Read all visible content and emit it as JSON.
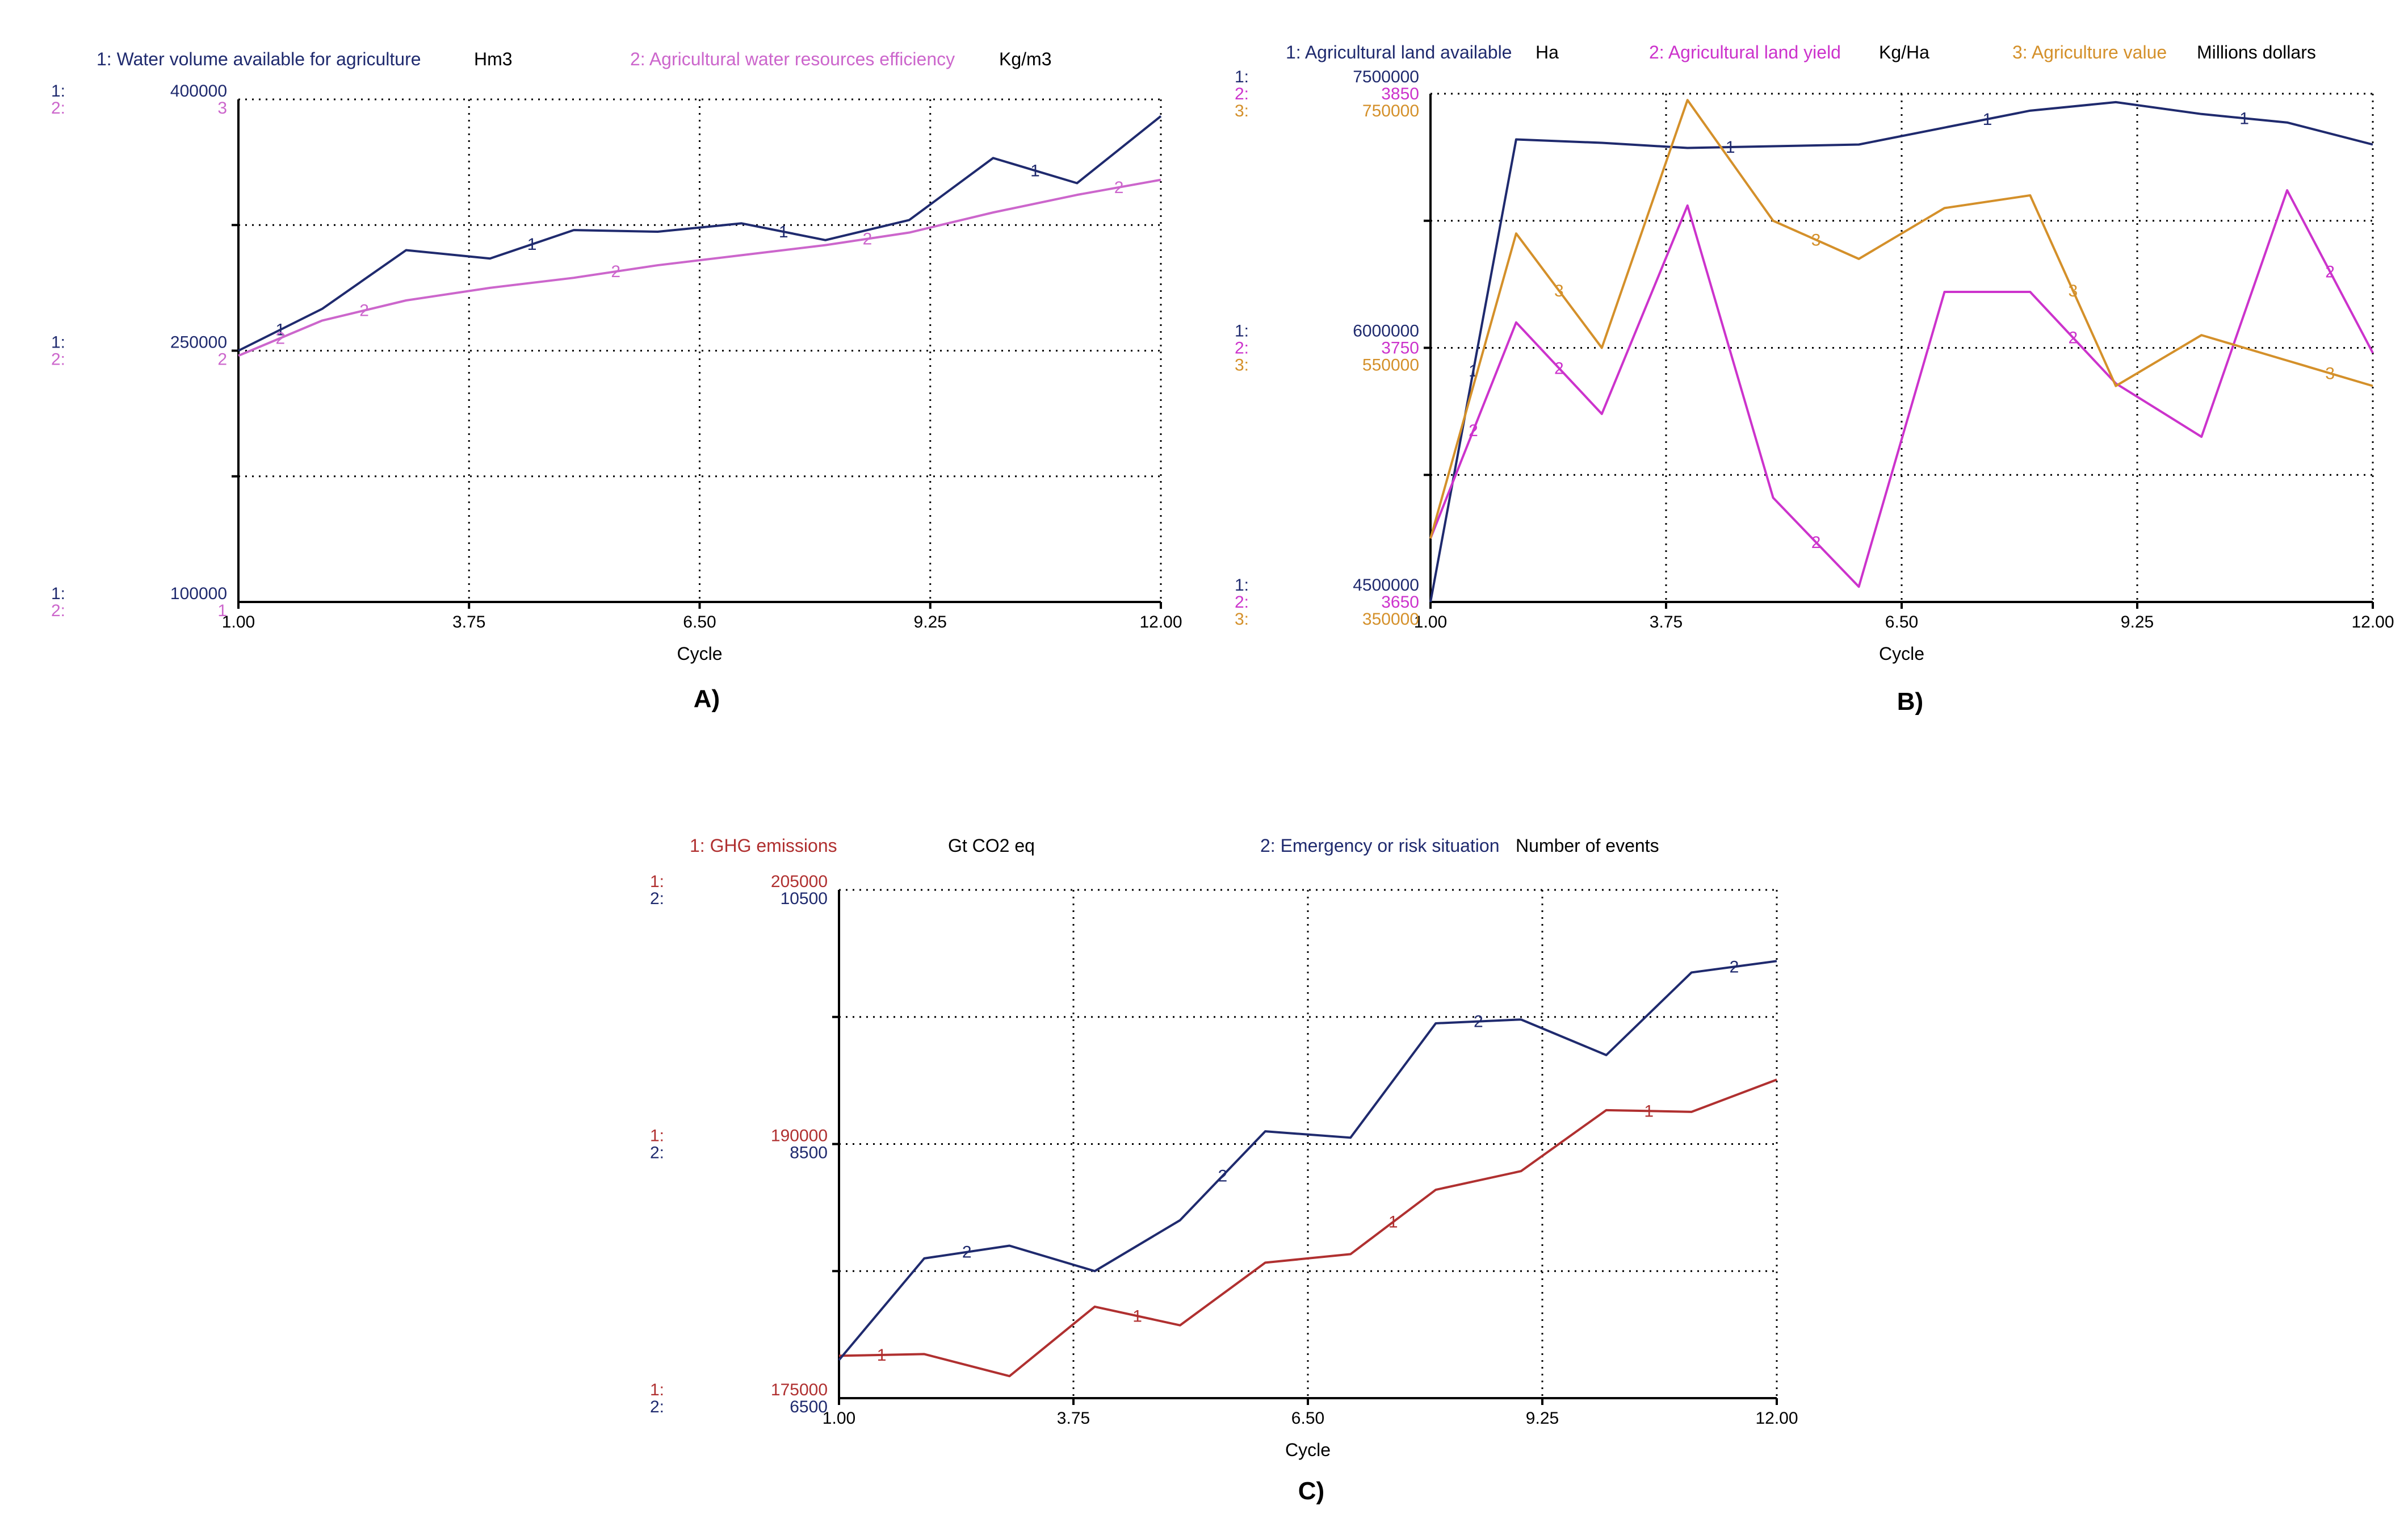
{
  "chart_data": [
    {
      "type": "line",
      "panel_label": "A)",
      "xlabel": "Cycle",
      "x_ticks": [
        "1.00",
        "3.75",
        "6.50",
        "9.25",
        "12.00"
      ],
      "xlim": [
        1,
        12
      ],
      "x": [
        1,
        2,
        3,
        4,
        5,
        6,
        7,
        8,
        9,
        10,
        11,
        12
      ],
      "series": [
        {
          "id": "1",
          "name": "1: Water volume available for agriculture",
          "unit": "Hm3",
          "color": "#1f2a6e",
          "ylim": [
            100000,
            400000
          ],
          "axis_ticks": [
            "400000",
            "250000",
            "100000"
          ],
          "label_every": [
            0,
            3,
            6,
            9
          ],
          "values": [
            250000,
            275000,
            310000,
            305000,
            322000,
            321000,
            326000,
            316000,
            328000,
            365000,
            350000,
            390000
          ]
        },
        {
          "id": "2",
          "name": "2: Agricultural water resources efficiency",
          "unit": "Kg/m3",
          "color": "#cc66cc",
          "ylim": [
            1,
            3
          ],
          "axis_ticks": [
            "3",
            "2",
            "1"
          ],
          "label_every": [
            0,
            1,
            4,
            7,
            10
          ],
          "values": [
            1.98,
            2.12,
            2.2,
            2.25,
            2.29,
            2.34,
            2.38,
            2.42,
            2.47,
            2.55,
            2.62,
            2.68
          ]
        }
      ]
    },
    {
      "type": "line",
      "panel_label": "B)",
      "xlabel": "Cycle",
      "x_ticks": [
        "1.00",
        "3.75",
        "6.50",
        "9.25",
        "12.00"
      ],
      "xlim": [
        1,
        12
      ],
      "x": [
        1,
        2,
        3,
        4,
        5,
        6,
        7,
        8,
        9,
        10,
        11,
        12
      ],
      "series": [
        {
          "id": "1",
          "name": "1: Agricultural land available",
          "unit": "Ha",
          "color": "#1f2a6e",
          "ylim": [
            4500000,
            7500000
          ],
          "axis_ticks": [
            "7500000",
            "6000000",
            "4500000"
          ],
          "label_every": [
            0,
            3,
            6,
            9
          ],
          "values": [
            4500000,
            7230000,
            7210000,
            7180000,
            7190000,
            7200000,
            7300000,
            7400000,
            7450000,
            7380000,
            7330000,
            7200000
          ]
        },
        {
          "id": "2",
          "name": "2: Agricultural land yield",
          "unit": "Kg/Ha",
          "color": "#cc33cc",
          "ylim": [
            3650,
            3850
          ],
          "axis_ticks": [
            "3850",
            "3750",
            "3650"
          ],
          "label_every": [
            0,
            1,
            4,
            7,
            10
          ],
          "values": [
            3675,
            3760,
            3724,
            3806,
            3691,
            3656,
            3772,
            3772,
            3736,
            3715,
            3812,
            3748
          ]
        },
        {
          "id": "3",
          "name": "3: Agriculture value",
          "unit": "Millions dollars",
          "color": "#d4902a",
          "ylim": [
            350000,
            750000
          ],
          "axis_ticks": [
            "750000",
            "550000",
            "350000"
          ],
          "label_every": [
            1,
            4,
            7,
            10
          ],
          "values": [
            400000,
            640000,
            550000,
            745000,
            650000,
            620000,
            660000,
            670000,
            520000,
            560000,
            540000,
            520000
          ]
        }
      ]
    },
    {
      "type": "line",
      "panel_label": "C)",
      "xlabel": "Cycle",
      "x_ticks": [
        "1.00",
        "3.75",
        "6.50",
        "9.25",
        "12.00"
      ],
      "xlim": [
        1,
        12
      ],
      "x": [
        1,
        2,
        3,
        4,
        5,
        6,
        7,
        8,
        9,
        10,
        11,
        12
      ],
      "series": [
        {
          "id": "1",
          "name": "1: GHG emissions",
          "unit": "Gt CO2 eq",
          "color": "#b03030",
          "ylim": [
            175000,
            205000
          ],
          "axis_ticks": [
            "205000",
            "190000",
            "175000"
          ],
          "label_every": [
            0,
            3,
            6,
            9
          ],
          "values": [
            177500,
            177600,
            176300,
            180400,
            179300,
            183000,
            183500,
            187300,
            188400,
            192000,
            191900,
            193800
          ]
        },
        {
          "id": "2",
          "name": "2: Emergency or risk situation",
          "unit": "Number of events",
          "color": "#1f2a6e",
          "ylim": [
            6500,
            10500
          ],
          "axis_ticks": [
            "10500",
            "8500",
            "6500"
          ],
          "label_every": [
            1,
            4,
            7,
            10
          ],
          "values": [
            6800,
            7600,
            7700,
            7500,
            7900,
            8600,
            8550,
            9450,
            9480,
            9200,
            9850,
            9940
          ]
        }
      ]
    }
  ]
}
